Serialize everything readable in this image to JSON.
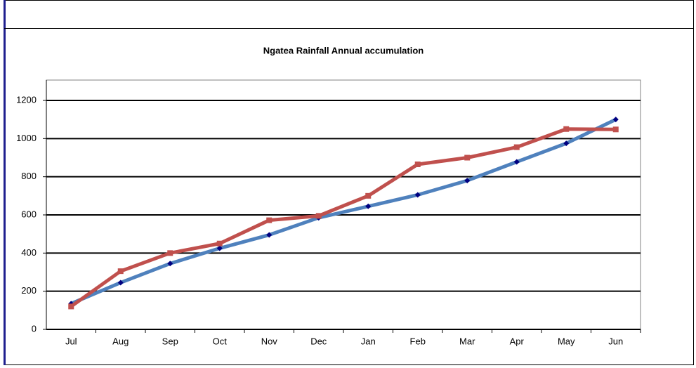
{
  "chart_data": {
    "type": "line",
    "title": "Ngatea Rainfall Annual accumulation",
    "categories": [
      "Jul",
      "Aug",
      "Sep",
      "Oct",
      "Nov",
      "Dec",
      "Jan",
      "Feb",
      "Mar",
      "Apr",
      "May",
      "Jun"
    ],
    "series": [
      {
        "color": "#4f81bd",
        "marker": "diamond",
        "marker_color": "#000080",
        "values": [
          135,
          245,
          345,
          425,
          495,
          585,
          645,
          705,
          780,
          878,
          975,
          1100
        ]
      },
      {
        "color": "#c0504d",
        "marker": "square",
        "marker_color": "#c0504d",
        "values": [
          120,
          305,
          400,
          450,
          572,
          595,
          700,
          865,
          900,
          955,
          1050,
          1048
        ]
      }
    ],
    "ylim": [
      0,
      1200
    ],
    "yticks": [
      0,
      200,
      400,
      600,
      800,
      1000,
      1200
    ],
    "grid": true
  }
}
